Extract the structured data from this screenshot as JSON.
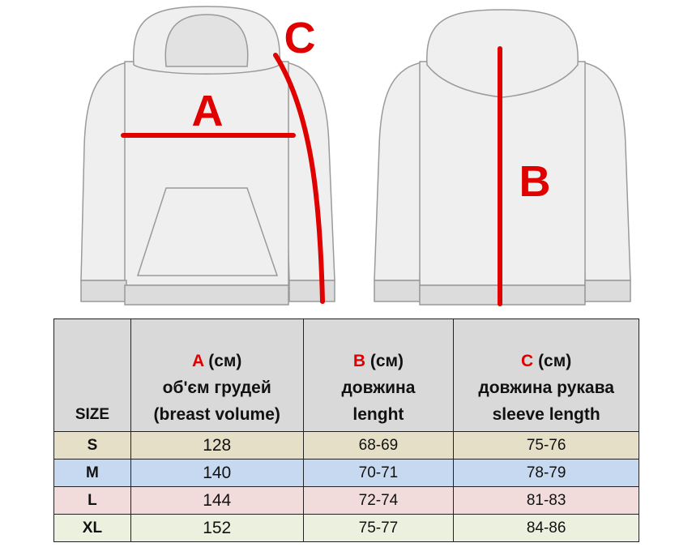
{
  "figure": {
    "labels": [
      "A",
      "B",
      "C"
    ]
  },
  "table": {
    "header": {
      "size": "SIZE",
      "columns": [
        {
          "letter": "A",
          "unit": "(см)",
          "lines": [
            "об'єм грудей",
            "(breast volume)"
          ]
        },
        {
          "letter": "B",
          "unit": "(см)",
          "lines": [
            "довжина",
            "lenght"
          ]
        },
        {
          "letter": "C",
          "unit": "(см)",
          "lines": [
            "довжина рукава",
            "sleeve length"
          ]
        }
      ]
    },
    "rows": [
      [
        "S",
        128,
        "68-69",
        "75-76"
      ],
      [
        "M",
        140,
        "70-71",
        "78-79"
      ],
      [
        "L",
        144,
        "72-74",
        "81-83"
      ],
      [
        "XL",
        152,
        "75-77",
        "84-86"
      ]
    ]
  }
}
